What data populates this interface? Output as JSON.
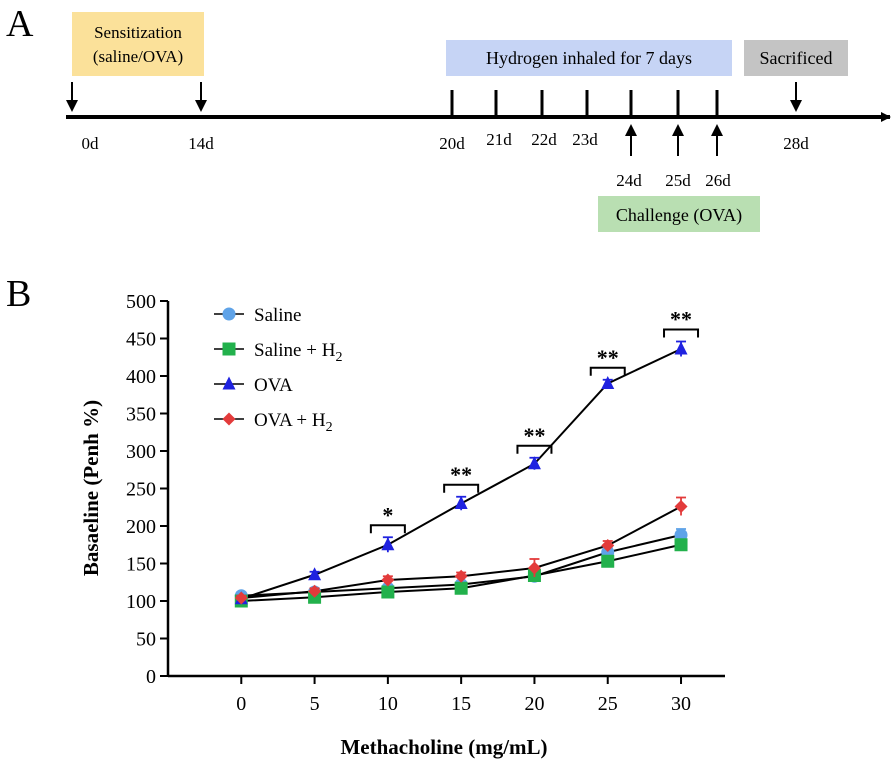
{
  "panel_a": {
    "label": "A",
    "sensitization_line1": "Sensitization",
    "sensitization_line2": "(saline/OVA)",
    "hydrogen_text": "Hydrogen inhaled for 7 days",
    "sacrificed_text": "Sacrificed",
    "challenge_text": "Challenge (OVA)",
    "days": [
      "0d",
      "14d",
      "20d",
      "21d",
      "22d",
      "23d",
      "24d",
      "25d",
      "26d",
      "28d"
    ],
    "colors": {
      "sensitization_box": "#fbe19a",
      "hydrogen_box": "#c6d4f5",
      "sacrificed_box": "#c4c4c4",
      "challenge_box": "#b9dfb2"
    }
  },
  "panel_b": {
    "label": "B"
  },
  "chart_data": {
    "type": "line",
    "xlabel": "Methacholine (mg/mL)",
    "ylabel": "Basaeline (Penh %)",
    "x": [
      0,
      5,
      10,
      15,
      20,
      25,
      30
    ],
    "xlim": [
      -5,
      33
    ],
    "ylim": [
      0,
      500
    ],
    "yticks": [
      0,
      50,
      100,
      150,
      200,
      250,
      300,
      350,
      400,
      450,
      500
    ],
    "xticks": [
      0,
      5,
      10,
      15,
      20,
      25,
      30
    ],
    "legend_position": "top-left",
    "series": [
      {
        "name": "Saline",
        "marker": "circle",
        "color": "#5fa3e8",
        "values": [
          107,
          112,
          117,
          122,
          133,
          165,
          188
        ],
        "errors": [
          3,
          3,
          4,
          4,
          4,
          6,
          8
        ]
      },
      {
        "name": "Saline + H2",
        "marker": "square",
        "color": "#22b14c",
        "values": [
          100,
          105,
          112,
          117,
          134,
          153,
          175
        ],
        "errors": [
          2,
          3,
          3,
          3,
          4,
          4,
          5
        ]
      },
      {
        "name": "OVA",
        "marker": "triangle",
        "color": "#1f22e0",
        "values": [
          103,
          135,
          175,
          230,
          283,
          390,
          436
        ],
        "errors": [
          3,
          4,
          10,
          9,
          8,
          5,
          10
        ]
      },
      {
        "name": "OVA + H2",
        "marker": "diamond",
        "color": "#e33b3b",
        "values": [
          104,
          113,
          128,
          133,
          144,
          174,
          226
        ],
        "errors": [
          3,
          4,
          5,
          5,
          12,
          6,
          12
        ]
      }
    ],
    "annotations": [
      {
        "x": 10,
        "text": "*"
      },
      {
        "x": 15,
        "text": "**"
      },
      {
        "x": 20,
        "text": "**"
      },
      {
        "x": 25,
        "text": "**"
      },
      {
        "x": 30,
        "text": "**"
      }
    ]
  }
}
